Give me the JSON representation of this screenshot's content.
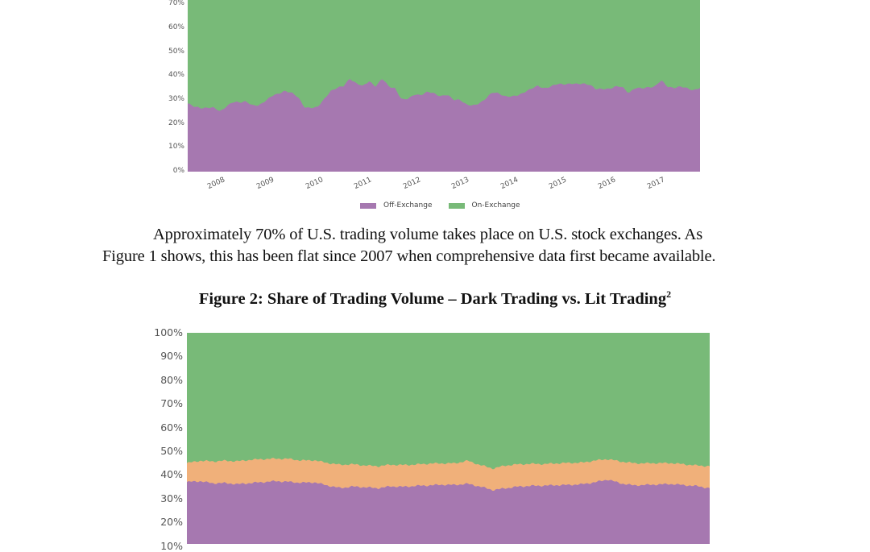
{
  "chart_data": [
    {
      "type": "area",
      "stacked": true,
      "title": "",
      "xlabel": "",
      "ylabel": "",
      "ylim": [
        0,
        100
      ],
      "y_ticks_visible": [
        "0%",
        "10%",
        "20%",
        "30%",
        "40%",
        "50%",
        "60%",
        "70%"
      ],
      "x_ticks": [
        "2008",
        "2009",
        "2010",
        "2011",
        "2012",
        "2013",
        "2014",
        "2015",
        "2016",
        "2017"
      ],
      "x_range": [
        2007.25,
        2017.75
      ],
      "legend": [
        "Off-Exchange",
        "On-Exchange"
      ],
      "legend_position": "bottom",
      "series": [
        {
          "name": "Off-Exchange",
          "color": "#a678b0",
          "values": [
            28.5,
            27,
            26.7,
            26.8,
            26.6,
            25.2,
            27.5,
            29,
            28.8,
            29.6,
            27.6,
            27.5,
            29.8,
            31.8,
            32.3,
            33.8,
            33.2,
            31,
            26.8,
            26.9,
            26.8,
            30,
            33.8,
            35,
            35.5,
            39,
            37,
            35.6,
            37.8,
            35.8,
            38.8,
            35.5,
            35,
            30,
            30.3,
            32.5,
            32,
            33.2,
            32.8,
            31.6,
            32,
            30,
            30.3,
            27.8,
            27.5,
            28.8,
            30.6,
            33,
            32.8,
            31.5,
            31.2,
            32,
            33.5,
            34.5,
            35.8,
            35,
            35.5,
            36.5,
            36.7,
            36.8,
            36.4,
            36.9,
            36.5,
            34.2,
            34.6,
            34.8,
            35.5,
            35.3,
            33,
            35,
            34.6,
            35.4,
            35.6,
            38,
            35.5,
            35.2,
            35.4,
            34.8,
            34.2,
            35
          ]
        },
        {
          "name": "On-Exchange",
          "color": "#78ba78",
          "values": "remainder to 100%"
        }
      ]
    },
    {
      "type": "area",
      "stacked": true,
      "title": "Figure 2: Share of Trading Volume – Dark Trading vs. Lit Trading",
      "title_superscript": "2",
      "xlabel": "",
      "ylabel": "",
      "ylim": [
        0,
        100
      ],
      "y_ticks_visible": [
        "10%",
        "20%",
        "30%",
        "40%",
        "50%",
        "60%",
        "70%",
        "80%",
        "90%",
        "100%"
      ],
      "series": [
        {
          "name": "bottom (purple)",
          "color": "#a678b0",
          "values": [
            37,
            37.4,
            36.5,
            36.6,
            36.1,
            36.6,
            37,
            37.4,
            37.1,
            36.7,
            36.9,
            35.6,
            34.5,
            35.1,
            34.8,
            34.4,
            35.2,
            35,
            35.4,
            35.6,
            35.9,
            35.8,
            36.3,
            35.1,
            33.6,
            34.4,
            35.1,
            35.4,
            35.5,
            35.7,
            35.8,
            36.1,
            36.9,
            38.1,
            36.5,
            35.6,
            35.8,
            36,
            36.2,
            35.7,
            35.3,
            34.4
          ]
        },
        {
          "name": "middle (orange)",
          "color": "#f0b07a",
          "values": [
            8,
            8.6,
            9.2,
            9.4,
            9.7,
            9.8,
            9.7,
            9.5,
            9.7,
            9.4,
            9.3,
            9.5,
            9.8,
            9.4,
            9.2,
            9.3,
            9.1,
            9.2,
            9,
            9.2,
            9,
            9.1,
            9.7,
            9.1,
            9.1,
            9.6,
            9.4,
            9.3,
            9.1,
            9.2,
            9.3,
            9.1,
            9.2,
            8.6,
            9.2,
            9.4,
            9.1,
            9,
            8.8,
            8.8,
            8.7,
            9.3
          ]
        },
        {
          "name": "top (green)",
          "color": "#78ba78",
          "values": "remainder to 100%"
        }
      ]
    }
  ],
  "document": {
    "paragraph_line1": "Approximately 70% of U.S. trading volume takes place on U.S. stock exchanges. As",
    "paragraph_line2": "Figure 1 shows, this has been flat since 2007 when comprehensive data first became available.",
    "figure2_title": "Figure 2: Share of Trading Volume – Dark Trading vs. Lit Trading",
    "figure2_superscript": "2"
  },
  "figure1": {
    "legend": [
      {
        "label": "Off-Exchange",
        "color": "#a678b0"
      },
      {
        "label": "On-Exchange",
        "color": "#78ba78"
      }
    ]
  }
}
